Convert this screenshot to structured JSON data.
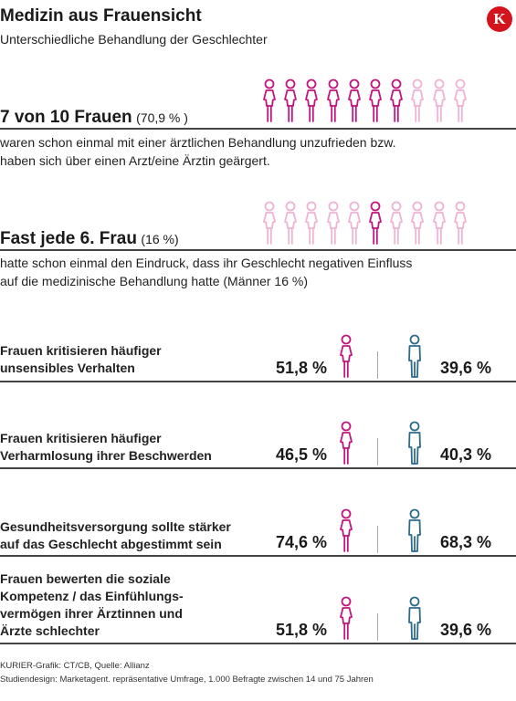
{
  "header": {
    "title": "Medizin aus Frauensicht",
    "subtitle": "Unterschiedliche Behandlung der Geschlechter",
    "logo_letter": "K"
  },
  "colors": {
    "female": "#c2167f",
    "female_faded": "#efb3d3",
    "male": "#2d6b8c",
    "rule": "#444444"
  },
  "stat1": {
    "headline": "7 von 10 Frauen",
    "value_text": "(70,9 % )",
    "description_line1": "waren schon einmal mit einer ärztlichen Behandlung unzufrieden bzw.",
    "description_line2": "haben sich über einen Arzt/eine Ärztin geärgert.",
    "icons_total": 10,
    "icons_highlighted": 7
  },
  "stat2": {
    "headline": "Fast jede 6. Frau",
    "value_text": "(16 %)",
    "description_line1": "hatte schon einmal den Eindruck, dass ihr Geschlecht negativen Einfluss",
    "description_line2": "auf die medizinische Behandlung hatte (Männer 16 %)",
    "icons_total": 10,
    "icons_highlighted": 1
  },
  "comparisons": [
    {
      "label_lines": [
        "Frauen kritisieren häufiger",
        "unsensibles Verhalten"
      ],
      "female": "51,8 %",
      "male": "39,6 %"
    },
    {
      "label_lines": [
        "Frauen kritisieren häufiger",
        "Verharmlosung ihrer Beschwerden"
      ],
      "female": "46,5 %",
      "male": "40,3 %"
    },
    {
      "label_lines": [
        "Gesundheitsversorgung sollte stärker",
        "auf das Geschlecht abgestimmt sein"
      ],
      "female": "74,6 %",
      "male": "68,3 %"
    },
    {
      "label_lines": [
        "Frauen bewerten die soziale",
        "Kompetenz / das Einfühlungs-",
        "vermögen ihrer Ärztinnen und",
        "Ärzte schlechter"
      ],
      "female": "51,8 %",
      "male": "39,6 %"
    }
  ],
  "chart_data": {
    "type": "table",
    "columns": [
      "Frauen",
      "Männer"
    ],
    "rows": [
      {
        "category": "Frauen kritisieren häufiger unsensibles Verhalten",
        "values": [
          51.8,
          39.6
        ]
      },
      {
        "category": "Frauen kritisieren häufiger Verharmlosung ihrer Beschwerden",
        "values": [
          46.5,
          40.3
        ]
      },
      {
        "category": "Gesundheitsversorgung sollte stärker auf das Geschlecht abgestimmt sein",
        "values": [
          74.6,
          68.3
        ]
      },
      {
        "category": "Frauen bewerten die soziale Kompetenz / das Einfühlungsvermögen ihrer Ärztinnen und Ärzte schlechter",
        "values": [
          51.8,
          39.6
        ]
      }
    ],
    "highlights": [
      {
        "label": "7 von 10 Frauen",
        "value": 70.9
      },
      {
        "label": "Fast jede 6. Frau",
        "value": 16
      }
    ]
  },
  "footer": {
    "line1": "KURIER-Grafik: CT/CB, Quelle: Allianz",
    "line2": "Studiendesign: Marketagent. repräsentative Umfrage, 1.000 Befragte zwischen 14 und 75 Jahren"
  }
}
